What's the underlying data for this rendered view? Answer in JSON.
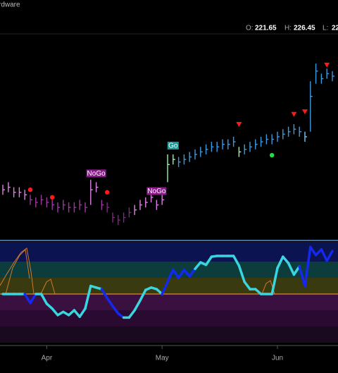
{
  "header": {
    "title": "rdware",
    "ohlc": [
      {
        "label": "O:",
        "value": "221.65"
      },
      {
        "label": "H:",
        "value": "226.45"
      },
      {
        "label": "L:",
        "value": "22"
      }
    ]
  },
  "chart_data": {
    "type": "ohlc",
    "categories": [
      null,
      null,
      null,
      null,
      null,
      null,
      null,
      null,
      "Apr",
      null,
      null,
      null,
      null,
      null,
      null,
      null,
      null,
      null,
      null,
      null,
      null,
      null,
      null,
      null,
      null,
      null,
      null,
      null,
      null,
      "May",
      null,
      null,
      null,
      null,
      null,
      null,
      null,
      null,
      null,
      null,
      null,
      null,
      null,
      null,
      null,
      null,
      null,
      null,
      null,
      null,
      "Jun",
      null,
      null,
      null,
      null,
      null,
      null,
      null,
      null,
      null,
      null
    ],
    "high": [
      179,
      180,
      178,
      178,
      177,
      175,
      174,
      175,
      174,
      173,
      172,
      173,
      172,
      172,
      173,
      172,
      181,
      180,
      173,
      172,
      168,
      167,
      168,
      170,
      171,
      173,
      174,
      176,
      173,
      175,
      191,
      191,
      190,
      191,
      192,
      193,
      194,
      195,
      196,
      196,
      197,
      197,
      198,
      194,
      195,
      196,
      197,
      198,
      199,
      199,
      200,
      201,
      202,
      203,
      202,
      200,
      220,
      227,
      223,
      225,
      224
    ],
    "low": [
      175,
      176,
      174,
      174,
      173,
      171,
      170,
      171,
      170,
      169,
      168,
      169,
      168,
      168,
      169,
      168,
      171,
      176,
      169,
      168,
      164,
      163,
      164,
      166,
      167,
      169,
      170,
      172,
      169,
      171,
      180,
      187,
      186,
      187,
      188,
      189,
      190,
      191,
      192,
      192,
      193,
      193,
      194,
      190,
      191,
      192,
      193,
      194,
      195,
      195,
      196,
      197,
      198,
      199,
      198,
      196,
      200,
      219,
      219,
      221,
      220
    ],
    "close": [
      177,
      178,
      176,
      176,
      175,
      173,
      172,
      173,
      172,
      171,
      170,
      171,
      170,
      170,
      171,
      170,
      177,
      178,
      171,
      170,
      166,
      165,
      166,
      168,
      169,
      171,
      172,
      174,
      171,
      173,
      187,
      189,
      188,
      189,
      190,
      191,
      192,
      193,
      194,
      194,
      195,
      195,
      196,
      192,
      193,
      194,
      195,
      196,
      197,
      197,
      198,
      199,
      200,
      201,
      200,
      198,
      214,
      224,
      221,
      223,
      222
    ],
    "bar_colors": [
      "#e27fe6",
      "#e27fe6",
      "#e27fe6",
      "#e27fe6",
      "#e27fe6",
      "#9b3a9e",
      "#9b3a9e",
      "#9b3a9e",
      "#9b3a9e",
      "#9b3a9e",
      "#9b3a9e",
      "#9b3a9e",
      "#9b3a9e",
      "#9b3a9e",
      "#9b3a9e",
      "#9b3a9e",
      "#e27fe6",
      "#e27fe6",
      "#9b3a9e",
      "#7a2a80",
      "#7a2a80",
      "#7a2a80",
      "#7a2a80",
      "#7a2a80",
      "#e27fe6",
      "#e27fe6",
      "#e27fe6",
      "#e27fe6",
      "#e27fe6",
      "#e27fe6",
      "#9af0b0",
      "#9af0b0",
      "#3a9be0",
      "#3a9be0",
      "#3a9be0",
      "#3a9be0",
      "#3a9be0",
      "#3a9be0",
      "#3a9be0",
      "#3a9be0",
      "#3a9be0",
      "#3a9be0",
      "#3a9be0",
      "#9af0b0",
      "#3a9be0",
      "#3a9be0",
      "#3a9be0",
      "#3a9be0",
      "#3a9be0",
      "#3a9be0",
      "#3a9be0",
      "#3a9be0",
      "#3a9be0",
      "#3a9be0",
      "#3a9be0",
      "#7ac8f0",
      "#3a9be0",
      "#3a9be0",
      "#3a9be0",
      "#3a9be0",
      "#3a9be0"
    ],
    "ylim": [
      160,
      241
    ],
    "markers": [
      {
        "index": 5,
        "price": 177,
        "shape": "dot",
        "color": "#ff1a1a"
      },
      {
        "index": 9,
        "price": 174,
        "shape": "dot",
        "color": "#ff1a1a"
      },
      {
        "index": 19,
        "price": 176,
        "shape": "dot",
        "color": "#ff1a1a"
      },
      {
        "index": 43,
        "price": 203,
        "shape": "triangle",
        "color": "#ff1a1a"
      },
      {
        "index": 53,
        "price": 207,
        "shape": "triangle",
        "color": "#ff1a1a"
      },
      {
        "index": 55,
        "price": 208,
        "shape": "triangle",
        "color": "#ff1a1a"
      },
      {
        "index": 59,
        "price": 226.5,
        "shape": "triangle",
        "color": "#ff1a1a"
      },
      {
        "index": 49,
        "price": 190.7,
        "shape": "dot",
        "color": "#22dd44"
      }
    ],
    "annotations": [
      {
        "text": "NoGo",
        "index": 17,
        "color": "#8a1a8a"
      },
      {
        "text": "NoGo",
        "index": 28,
        "color": "#8a1a8a"
      },
      {
        "text": "Go",
        "index": 31,
        "color": "#1a9a9a"
      }
    ],
    "oscillator": {
      "values": [
        0,
        0,
        0,
        0,
        0,
        -1.1,
        0,
        0,
        -1.2,
        -1.8,
        -2.6,
        -2.2,
        -2.6,
        -2,
        -2.8,
        -1.8,
        1,
        0.8,
        0.6,
        -0.5,
        -1.5,
        -2.4,
        -2.9,
        -2.9,
        -2,
        -0.8,
        0.5,
        0.8,
        0.6,
        0,
        1.5,
        3,
        2,
        3,
        2.2,
        3.1,
        3.9,
        3.6,
        4.6,
        4.7,
        4.7,
        4.7,
        4.7,
        3.5,
        1.5,
        0.6,
        0.6,
        0,
        0,
        0,
        3.2,
        4.6,
        3.8,
        2.4,
        3.4,
        1,
        5.8,
        4.8,
        5.5,
        4.1,
        5.3
      ],
      "colors": [
        "#3ad6e0",
        "#3ad6e0",
        "#3ad6e0",
        "#3ad6e0",
        "#1428f0",
        "#1428f0",
        "#3ad6e0",
        "#3ad6e0",
        "#3ad6e0",
        "#3ad6e0",
        "#3ad6e0",
        "#3ad6e0",
        "#3ad6e0",
        "#3ad6e0",
        "#3ad6e0",
        "#3ad6e0",
        "#3ad6e0",
        "#3ad6e0",
        "#1428f0",
        "#1428f0",
        "#1428f0",
        "#1428f0",
        "#3ad6e0",
        "#3ad6e0",
        "#3ad6e0",
        "#3ad6e0",
        "#3ad6e0",
        "#3ad6e0",
        "#3ad6e0",
        "#1428f0",
        "#1428f0",
        "#1428f0",
        "#1428f0",
        "#1428f0",
        "#1428f0",
        "#3ad6e0",
        "#3ad6e0",
        "#3ad6e0",
        "#3ad6e0",
        "#3ad6e0",
        "#3ad6e0",
        "#3ad6e0",
        "#3ad6e0",
        "#3ad6e0",
        "#3ad6e0",
        "#3ad6e0",
        "#3ad6e0",
        "#3ad6e0",
        "#3ad6e0",
        "#3ad6e0",
        "#3ad6e0",
        "#3ad6e0",
        "#3ad6e0",
        "#3ad6e0",
        "#1428f0",
        "#1428f0",
        "#1428f0",
        "#1428f0",
        "#1428f0",
        "#1428f0",
        "#1428f0"
      ],
      "ylim": [
        -6,
        6
      ],
      "zero_color": "#e08a2a",
      "bands": [
        "#0b1450",
        "#0d3c3c",
        "#3a3a10",
        "#3a1040",
        "#2a0a30",
        "#1a0a20"
      ]
    }
  }
}
